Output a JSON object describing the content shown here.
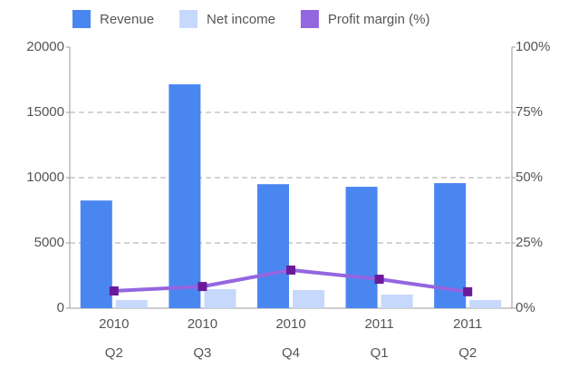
{
  "chart_data": {
    "type": "bar",
    "categories": [
      [
        "2010",
        "Q2"
      ],
      [
        "2010",
        "Q3"
      ],
      [
        "2010",
        "Q4"
      ],
      [
        "2011",
        "Q1"
      ],
      [
        "2011",
        "Q2"
      ]
    ],
    "series": [
      {
        "name": "Revenue",
        "color": "#4a86f0",
        "type": "bar",
        "values": [
          8250,
          17150,
          9500,
          9300,
          9580
        ]
      },
      {
        "name": "Net income",
        "color": "#c6d8fb",
        "type": "bar",
        "values": [
          620,
          1460,
          1390,
          1040,
          620
        ]
      },
      {
        "name": "Profit margin (%)",
        "color": "#9466e0",
        "marker_color": "#6a1b9a",
        "type": "line",
        "axis": "y2",
        "values": [
          6.6,
          8.3,
          14.6,
          11.1,
          6.3
        ]
      }
    ],
    "ylim": [
      0,
      20000
    ],
    "yticks": [
      0,
      5000,
      10000,
      15000,
      20000
    ],
    "y2lim": [
      0,
      100
    ],
    "y2ticks": [
      {
        "value": 0,
        "label": "0%"
      },
      {
        "value": 25,
        "label": "25%"
      },
      {
        "value": 50,
        "label": "50%"
      },
      {
        "value": 75,
        "label": "75%"
      },
      {
        "value": 100,
        "label": "100%"
      }
    ],
    "grid": true,
    "legend": "top"
  }
}
